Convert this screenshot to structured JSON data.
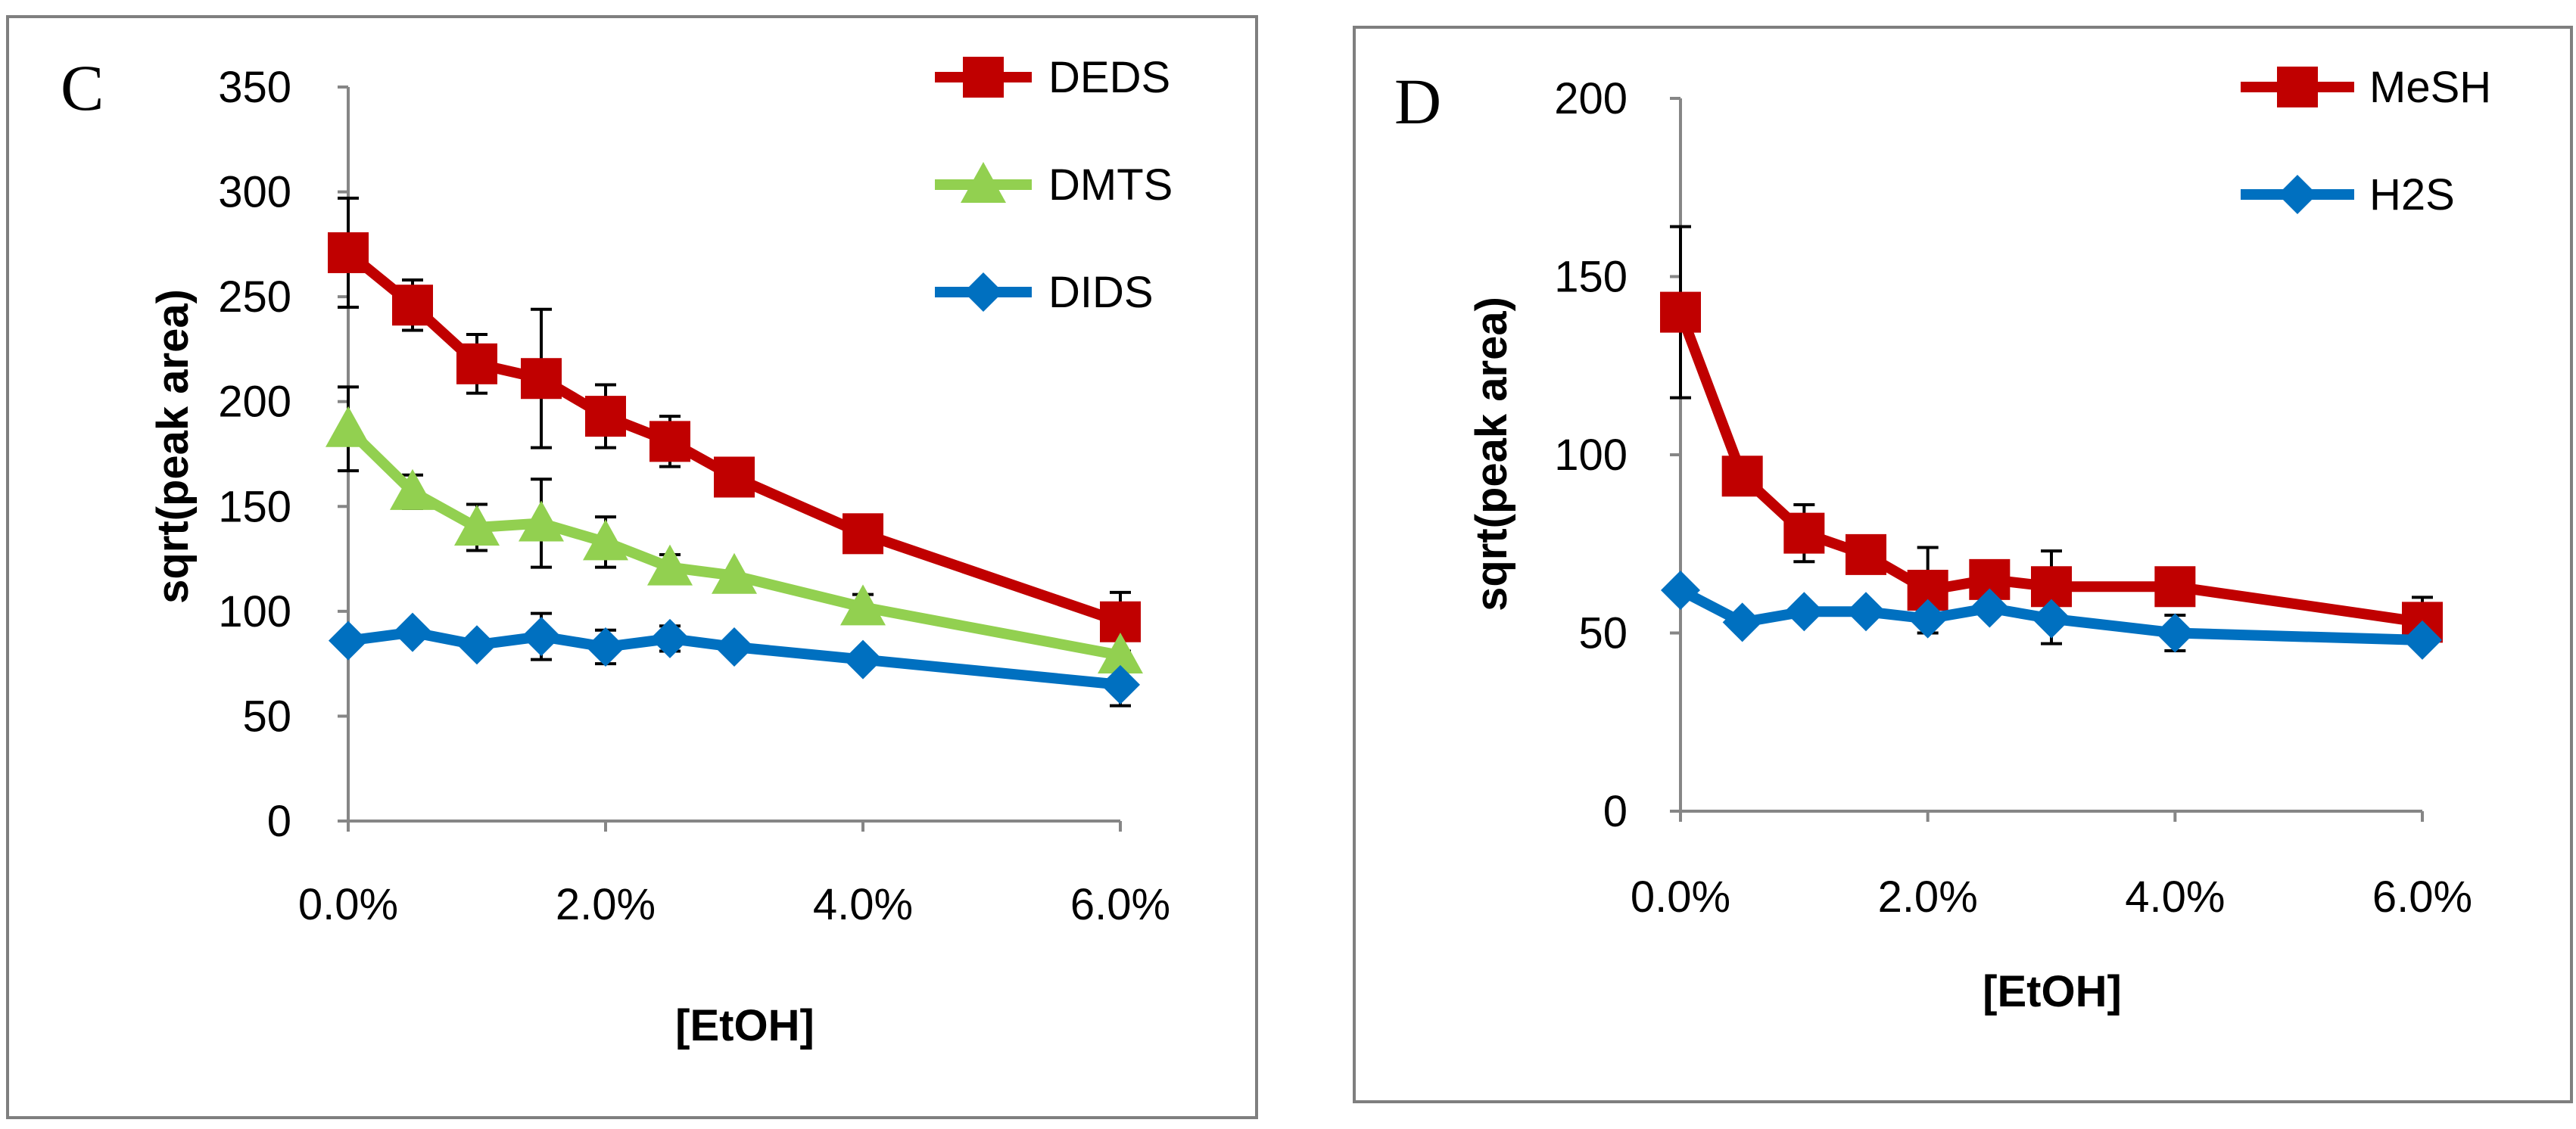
{
  "chart_data": [
    {
      "type": "line",
      "panel_label": "C",
      "title": "",
      "xlabel": "[EtOH]",
      "ylabel": "sqrt(peak area)",
      "xlim": [
        0,
        6
      ],
      "ylim": [
        0,
        350
      ],
      "yticks": [
        0,
        50,
        100,
        150,
        200,
        250,
        300,
        350
      ],
      "xticks": [
        0,
        2,
        4,
        6
      ],
      "xtick_labels": [
        "0.0%",
        "2.0%",
        "4.0%",
        "6.0%"
      ],
      "ytick_labels": [
        "0",
        "50",
        "100",
        "150",
        "200",
        "250",
        "300",
        "350"
      ],
      "grid": false,
      "legend_position": "top-right",
      "x": [
        0,
        0.5,
        1,
        1.5,
        2,
        2.5,
        3,
        4,
        6
      ],
      "series": [
        {
          "name": "DEDS",
          "color": "#c00000",
          "marker": "square",
          "values": [
            271,
            246,
            218,
            211,
            193,
            181,
            164,
            137,
            95
          ],
          "errors": [
            26,
            12,
            14,
            33,
            15,
            12,
            0,
            0,
            14
          ]
        },
        {
          "name": "DMTS",
          "color": "#92d050",
          "marker": "triangle",
          "values": [
            187,
            157,
            140,
            142,
            133,
            121,
            117,
            102,
            79
          ],
          "errors": [
            20,
            8,
            11,
            21,
            12,
            6,
            0,
            6,
            0
          ]
        },
        {
          "name": "DIDS",
          "color": "#0070c0",
          "marker": "diamond",
          "values": [
            86,
            90,
            84,
            88,
            83,
            87,
            83,
            77,
            65
          ],
          "errors": [
            0,
            0,
            0,
            11,
            8,
            6,
            0,
            0,
            10
          ]
        }
      ]
    },
    {
      "type": "line",
      "panel_label": "D",
      "title": "",
      "xlabel": "[EtOH]",
      "ylabel": "sqrt(peak area)",
      "xlim": [
        0,
        6
      ],
      "ylim": [
        0,
        200
      ],
      "yticks": [
        0,
        50,
        100,
        150,
        200
      ],
      "xticks": [
        0,
        2,
        4,
        6
      ],
      "xtick_labels": [
        "0.0%",
        "2.0%",
        "4.0%",
        "6.0%"
      ],
      "ytick_labels": [
        "0",
        "50",
        "100",
        "150",
        "200"
      ],
      "grid": false,
      "legend_position": "top-right",
      "x": [
        0,
        0.5,
        1,
        1.5,
        2,
        2.5,
        3,
        4,
        6
      ],
      "series": [
        {
          "name": "MeSH",
          "color": "#c00000",
          "marker": "square",
          "values": [
            140,
            94,
            78,
            72,
            62,
            65,
            63,
            63,
            53
          ],
          "errors": [
            24,
            0,
            8,
            0,
            12,
            0,
            10,
            0,
            7
          ]
        },
        {
          "name": "H2S",
          "color": "#0070c0",
          "marker": "diamond",
          "values": [
            62,
            53,
            56,
            56,
            54,
            57,
            54,
            50,
            48
          ],
          "errors": [
            0,
            0,
            0,
            0,
            0,
            0,
            7,
            5,
            0
          ]
        }
      ]
    }
  ]
}
